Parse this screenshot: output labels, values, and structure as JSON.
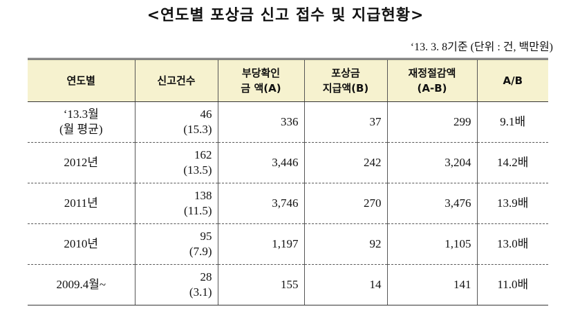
{
  "header": {
    "title": "<연도별 포상금 신고 접수 및 지급현황>",
    "note": "‘13. 3. 8기준 (단위 : 건, 백만원)"
  },
  "table": {
    "columns": [
      [
        "연도별"
      ],
      [
        "신고건수"
      ],
      [
        "부당확인",
        "금 액(A)"
      ],
      [
        "포상금",
        "지급액(B)"
      ],
      [
        "재정절감액",
        "(A-B)"
      ],
      [
        "A/B"
      ]
    ],
    "rows": [
      [
        [
          "‘13.3월",
          "(월 평균)"
        ],
        [
          "46",
          "(15.3)"
        ],
        [
          "336"
        ],
        [
          "37"
        ],
        [
          "299"
        ],
        [
          "9.1배"
        ]
      ],
      [
        [
          "2012년"
        ],
        [
          "162",
          "(13.5)"
        ],
        [
          "3,446"
        ],
        [
          "242"
        ],
        [
          "3,204"
        ],
        [
          "14.2배"
        ]
      ],
      [
        [
          "2011년"
        ],
        [
          "138",
          "(11.5)"
        ],
        [
          "3,746"
        ],
        [
          "270"
        ],
        [
          "3,476"
        ],
        [
          "13.9배"
        ]
      ],
      [
        [
          "2010년"
        ],
        [
          "95",
          "(7.9)"
        ],
        [
          "1,197"
        ],
        [
          "92"
        ],
        [
          "1,105"
        ],
        [
          "13.0배"
        ]
      ],
      [
        [
          "2009.4월~"
        ],
        [
          "28",
          "(3.1)"
        ],
        [
          "155"
        ],
        [
          "14"
        ],
        [
          "141"
        ],
        [
          "11.0배"
        ]
      ]
    ]
  }
}
